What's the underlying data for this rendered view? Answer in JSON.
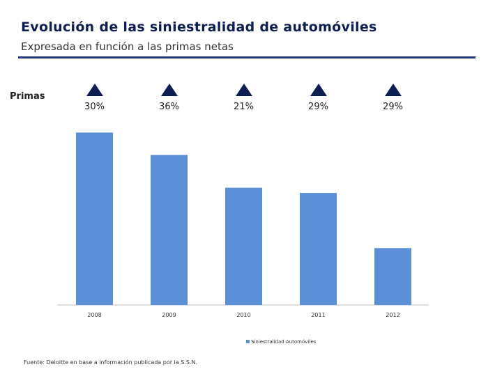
{
  "header": {
    "title": "Evolución de las siniestralidad de automóviles",
    "subtitle": "Expresada en función a las primas netas"
  },
  "primas": {
    "label": "Primas",
    "items": [
      {
        "year": "2008",
        "value": "30%"
      },
      {
        "year": "2009",
        "value": "36%"
      },
      {
        "year": "2010",
        "value": "21%"
      },
      {
        "year": "2011",
        "value": "29%"
      },
      {
        "year": "2012",
        "value": "29%"
      }
    ]
  },
  "colors": {
    "bar": "#5b8fd6",
    "accent": "#0d1f52",
    "rule": "#1e3a7a"
  },
  "chart_data": {
    "type": "bar",
    "categories": [
      "2008",
      "2009",
      "2010",
      "2011",
      "2012"
    ],
    "series": [
      {
        "name": "Siniestralidad Automóviles",
        "values": [
          100,
          87,
          68,
          65,
          33
        ]
      }
    ],
    "ylim": [
      0,
      105
    ],
    "legend": {
      "label": "Siniestralidad Automóviles",
      "position": "bottom"
    }
  },
  "footer": {
    "source": "Fuente: Deloitte en base a información publicada por la S.S.N."
  }
}
